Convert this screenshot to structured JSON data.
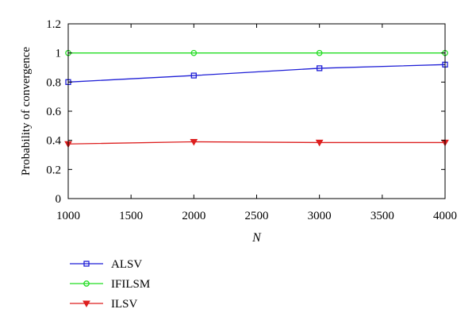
{
  "chart_data": {
    "type": "line",
    "xlabel": "N",
    "ylabel": "Probability of convergence",
    "x": [
      1000,
      2000,
      3000,
      4000
    ],
    "xlim": [
      1000,
      4000
    ],
    "ylim": [
      0,
      1.2
    ],
    "xticks": [
      1000,
      1500,
      2000,
      2500,
      3000,
      3500,
      4000
    ],
    "yticks": [
      0,
      0.2,
      0.4,
      0.6,
      0.8,
      1,
      1.2
    ],
    "xtick_labels": [
      "1000",
      "1500",
      "2000",
      "2500",
      "3000",
      "3500",
      "4000"
    ],
    "ytick_labels": [
      "0",
      "0.2",
      "0.4",
      "0.6",
      "0.8",
      "1",
      "1.2"
    ],
    "grid": false,
    "legend_position": "below plot, left",
    "series": [
      {
        "name": "ALSV",
        "values": [
          0.8,
          0.845,
          0.895,
          0.92
        ],
        "color": "#1f1fd6",
        "marker": "square"
      },
      {
        "name": "IFILSM",
        "values": [
          1.0,
          1.0,
          1.0,
          1.0
        ],
        "color": "#22dd22",
        "marker": "circle"
      },
      {
        "name": "ILSV",
        "values": [
          0.375,
          0.39,
          0.385,
          0.385
        ],
        "color": "#dd1f1f",
        "marker": "triangle-down"
      }
    ]
  }
}
